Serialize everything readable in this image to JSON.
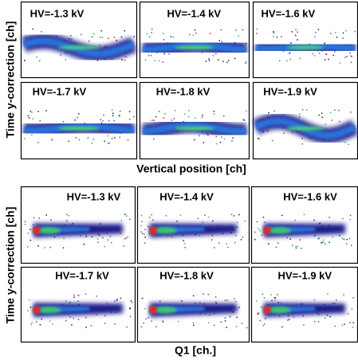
{
  "figures": [
    {
      "ylabel": "Time y-correction [ch]",
      "xlabel": "Vertical position [ch]",
      "panels": [
        {
          "label": "HV=-1.3 kV"
        },
        {
          "label": "HV=-1.4 kV"
        },
        {
          "label": "HV=-1.6 kV"
        },
        {
          "label": "HV=-1.7 kV"
        },
        {
          "label": "HV=-1.8 kV"
        },
        {
          "label": "HV=-1.9 kV"
        }
      ]
    },
    {
      "ylabel": "Time y-correction [ch]",
      "xlabel": "Q1 [ch.]",
      "panels": [
        {
          "label": "HV=-1.3 kV"
        },
        {
          "label": "HV=-1.4 kV"
        },
        {
          "label": "HV=-1.6 kV"
        },
        {
          "label": "HV=-1.7 kV"
        },
        {
          "label": "HV=-1.8 kV"
        },
        {
          "label": "HV=-1.9 kV"
        }
      ]
    }
  ]
}
